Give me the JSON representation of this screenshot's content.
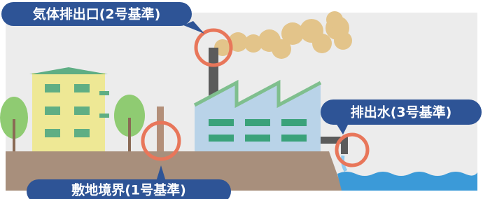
{
  "labels": {
    "gas_outlet": "気体排出口(2号基準)",
    "discharge_water": "排出水(3号基準)",
    "site_boundary": "敷地境界(1号基準)"
  }
}
